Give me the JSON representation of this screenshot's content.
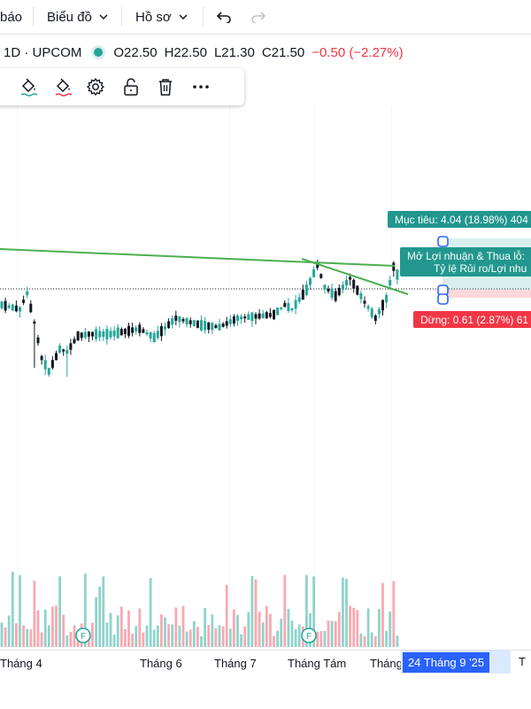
{
  "topbar": {
    "alerts_label": "báo",
    "chart_menu_label": "Biểu đồ",
    "profile_menu_label": "Hồ sơ",
    "undo_icon": "undo-icon",
    "redo_icon": "redo-icon"
  },
  "legend": {
    "symbol": "1D · UPCOM",
    "status_color": "#26a69a",
    "open": "O22.50",
    "high": "H22.50",
    "low": "L21.30",
    "close": "C21.50",
    "change": "−0.50 (−2.27%)",
    "change_color": "#f23645"
  },
  "drawing_toolbar": {
    "icons": [
      "paint-bucket-icon",
      "paint-bucket-icon",
      "gear-icon",
      "unlock-icon",
      "trash-icon",
      "more-icon"
    ]
  },
  "position_tool": {
    "target_label": "Mục tiêu: 4.04 (18.98%) 404",
    "pnl_label_line1": "Mở Lợi nhuận & Thua lỗ:",
    "pnl_label_line2": "Tỷ lệ Rủi ro/Lợi nhu",
    "stop_label": "Dừng: 0.61 (2.87%) 61",
    "target_color": "#22978f",
    "stop_color": "#f23645"
  },
  "xaxis": {
    "labels": [
      "Tháng 4",
      "Tháng 6",
      "Tháng 7",
      "Tháng Tám",
      "Tháng"
    ],
    "cursor_label": "24 Tháng 9 '25",
    "right_label": "T"
  },
  "chart_data": {
    "type": "candlestick",
    "up_color": "#26a69a",
    "down_color": "#131722",
    "volume_up_color": "#8fd3cb",
    "volume_down_color": "#f7a9b0",
    "trendline_color": "#4caf50",
    "event_markers": [
      "F",
      "F"
    ],
    "x_labels": [
      "Tháng 4",
      "Tháng 6",
      "Tháng 7",
      "Tháng Tám",
      "Tháng"
    ]
  }
}
